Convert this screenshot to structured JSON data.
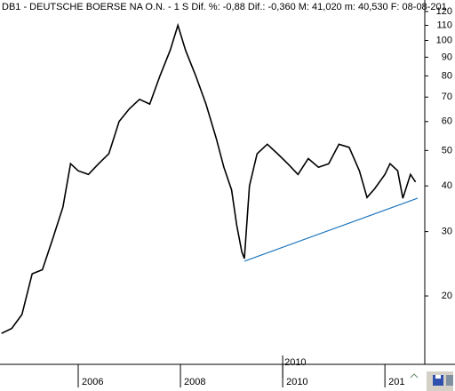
{
  "chart_data": {
    "type": "line",
    "title": "DB1 - DEUTSCHE BOERSE NA O.N. - 1 S  Dif. %: -0,88  Dif.: -0,360  M: 41,020  m: 40,530  F: 08-08-201",
    "log_scale": true,
    "x": [
      2004.5,
      2004.7,
      2004.9,
      2005.1,
      2005.3,
      2005.5,
      2005.7,
      2005.85,
      2006.0,
      2006.2,
      2006.4,
      2006.6,
      2006.8,
      2007.0,
      2007.2,
      2007.4,
      2007.6,
      2007.8,
      2007.95,
      2008.1,
      2008.3,
      2008.5,
      2008.7,
      2008.85,
      2009.0,
      2009.1,
      2009.2,
      2009.25,
      2009.35,
      2009.5,
      2009.7,
      2009.9,
      2010.1,
      2010.3,
      2010.5,
      2010.7,
      2010.9,
      2011.1,
      2011.3,
      2011.5,
      2011.65,
      2011.8,
      2012.0,
      2012.1,
      2012.25,
      2012.35,
      2012.5,
      2012.6
    ],
    "series": [
      {
        "color": "#000000",
        "values": [
          15.8,
          16.3,
          17.8,
          23,
          23.6,
          28.6,
          35,
          46,
          44,
          43,
          46,
          49,
          60,
          65,
          69,
          67,
          80,
          94,
          110,
          94,
          80,
          67,
          54,
          45,
          39,
          31.3,
          26.4,
          25.3,
          40,
          49,
          52,
          49,
          46,
          43,
          47.5,
          45,
          46,
          52,
          51,
          44,
          37.2,
          39.3,
          43,
          46,
          44,
          37,
          43,
          41
        ]
      }
    ],
    "trendline": {
      "color": "#1f77c0",
      "x": [
        2009.25,
        2012.64
      ],
      "values": [
        24.9,
        37
      ]
    },
    "annotation": "2010",
    "xlim": [
      2004.47,
      2012.78
    ],
    "xticks": [
      2006,
      2008,
      2010,
      {
        "value": 2012,
        "label": "201"
      }
    ],
    "ylim": [
      13,
      122
    ],
    "yticks": [
      20,
      30,
      40,
      50,
      60,
      70,
      80,
      90,
      100,
      110,
      120
    ]
  }
}
